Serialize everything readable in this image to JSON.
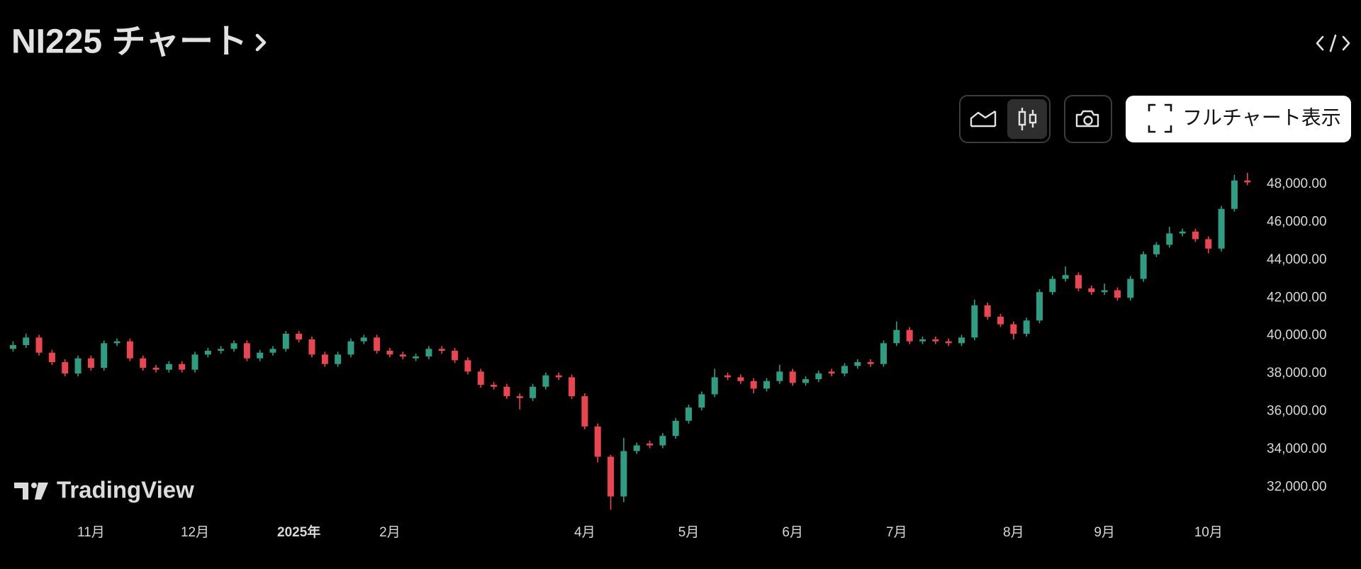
{
  "toolbar": {
    "full_chart_button": "フルチャート表示"
  },
  "branding": "TradingView",
  "chart_data": {
    "type": "candlestick",
    "title": "NI225 チャート",
    "categories": [
      null,
      null,
      null,
      null,
      null,
      null,
      "11月",
      null,
      null,
      null,
      null,
      null,
      null,
      null,
      "12月",
      null,
      null,
      null,
      null,
      null,
      null,
      null,
      "2025年",
      null,
      null,
      null,
      null,
      null,
      null,
      "2月",
      null,
      null,
      null,
      null,
      null,
      null,
      null,
      null,
      null,
      null,
      null,
      null,
      null,
      null,
      "4月",
      null,
      null,
      null,
      null,
      null,
      null,
      null,
      "5月",
      null,
      null,
      null,
      null,
      null,
      null,
      null,
      "6月",
      null,
      null,
      null,
      null,
      null,
      null,
      null,
      "7月",
      null,
      null,
      null,
      null,
      null,
      null,
      null,
      null,
      "8月",
      null,
      null,
      null,
      null,
      null,
      null,
      "9月",
      null,
      null,
      null,
      null,
      null,
      null,
      null,
      "10月",
      null,
      null,
      null
    ],
    "emphasized_categories": [
      22
    ],
    "open": [
      39300,
      39500,
      39900,
      39100,
      38600,
      38000,
      38800,
      38300,
      39600,
      39700,
      38800,
      38300,
      38200,
      38500,
      38200,
      39000,
      39200,
      39300,
      39600,
      38800,
      39100,
      39300,
      40100,
      39800,
      39000,
      38500,
      39000,
      39700,
      39900,
      39200,
      39000,
      38800,
      38900,
      39300,
      39200,
      38700,
      38100,
      37400,
      37300,
      36800,
      36700,
      37300,
      37900,
      37800,
      36800,
      35200,
      33600,
      31500,
      33900,
      34300,
      34200,
      34700,
      35500,
      36200,
      36900,
      37900,
      37800,
      37600,
      37200,
      37600,
      38100,
      37500,
      37700,
      38100,
      38000,
      38400,
      38600,
      38500,
      39600,
      40300,
      39700,
      39800,
      39700,
      39600,
      39900,
      41600,
      41000,
      40600,
      40100,
      40800,
      42300,
      43000,
      43200,
      42500,
      42300,
      42400,
      42000,
      43000,
      44300,
      44800,
      45400,
      45500,
      45100,
      44600,
      46700,
      48200
    ],
    "high": [
      39700,
      40100,
      40050,
      39250,
      38750,
      38950,
      38950,
      39750,
      39850,
      39850,
      38950,
      38450,
      38650,
      38650,
      39150,
      39350,
      39450,
      39750,
      39750,
      39250,
      39450,
      40250,
      40250,
      39950,
      39150,
      39150,
      39850,
      40050,
      40050,
      39350,
      39150,
      39050,
      39450,
      39450,
      39350,
      38850,
      38250,
      37550,
      37450,
      36950,
      37450,
      38050,
      38050,
      37950,
      36950,
      35350,
      33700,
      34600,
      34350,
      34450,
      34850,
      35650,
      36350,
      37050,
      38250,
      38050,
      37950,
      37750,
      37750,
      38450,
      38250,
      37850,
      38150,
      38250,
      38550,
      38750,
      38750,
      39750,
      40750,
      40450,
      39950,
      39950,
      39850,
      40050,
      41900,
      41750,
      41150,
      40750,
      40950,
      42450,
      43150,
      43650,
      43350,
      42650,
      42750,
      42550,
      43150,
      44450,
      44950,
      45750,
      45650,
      45650,
      45250,
      46850,
      48500,
      48600
    ],
    "low": [
      39150,
      39350,
      38950,
      38450,
      37850,
      37850,
      38150,
      38150,
      39450,
      38650,
      38150,
      38050,
      38050,
      38050,
      38050,
      38850,
      39050,
      39150,
      38650,
      38650,
      38950,
      39150,
      39650,
      38850,
      38350,
      38350,
      38850,
      39550,
      39050,
      38850,
      38750,
      38650,
      38750,
      39050,
      38550,
      37950,
      37250,
      37150,
      36650,
      36100,
      36550,
      37150,
      37650,
      36650,
      35050,
      33300,
      30800,
      31200,
      33750,
      34050,
      34050,
      34550,
      35350,
      36050,
      36750,
      37650,
      37450,
      36950,
      37050,
      37450,
      37350,
      37350,
      37550,
      37850,
      37850,
      38250,
      38350,
      38350,
      39450,
      39550,
      39550,
      39550,
      39450,
      39450,
      39750,
      40850,
      40450,
      39800,
      39950,
      40650,
      42150,
      42850,
      42350,
      42150,
      42150,
      41850,
      41850,
      42850,
      44150,
      44650,
      45250,
      44950,
      44350,
      44450,
      46550,
      47950
    ],
    "close": [
      39500,
      39900,
      39100,
      38600,
      38000,
      38800,
      38300,
      39600,
      39700,
      38800,
      38300,
      38200,
      38500,
      38200,
      39000,
      39200,
      39300,
      39600,
      38800,
      39100,
      39300,
      40100,
      39800,
      39000,
      38500,
      39000,
      39700,
      39900,
      39200,
      39000,
      38900,
      38900,
      39300,
      39200,
      38700,
      38100,
      37400,
      37300,
      36800,
      36700,
      37300,
      37900,
      37800,
      36800,
      35200,
      33600,
      31500,
      33900,
      34200,
      34200,
      34700,
      35500,
      36200,
      36900,
      37800,
      37800,
      37600,
      37200,
      37600,
      38100,
      37500,
      37700,
      38000,
      38000,
      38400,
      38600,
      38500,
      39600,
      40300,
      39700,
      39800,
      39700,
      39600,
      39900,
      41600,
      41000,
      40600,
      40100,
      40800,
      42300,
      43000,
      43200,
      42500,
      42300,
      42400,
      42000,
      43000,
      44300,
      44800,
      45400,
      45500,
      45100,
      44600,
      46700,
      48200,
      48100
    ],
    "up_color": "#2e9d82",
    "down_color": "#e9464f",
    "ylim": [
      30400,
      49200
    ],
    "yticks": [
      {
        "value": 32000,
        "label": "32,000.00"
      },
      {
        "value": 34000,
        "label": "34,000.00"
      },
      {
        "value": 36000,
        "label": "36,000.00"
      },
      {
        "value": 38000,
        "label": "38,000.00"
      },
      {
        "value": 40000,
        "label": "40,000.00"
      },
      {
        "value": 42000,
        "label": "42,000.00"
      },
      {
        "value": 44000,
        "label": "44,000.00"
      },
      {
        "value": 46000,
        "label": "46,000.00"
      },
      {
        "value": 48000,
        "label": "48,000.00"
      }
    ],
    "grid": false
  }
}
